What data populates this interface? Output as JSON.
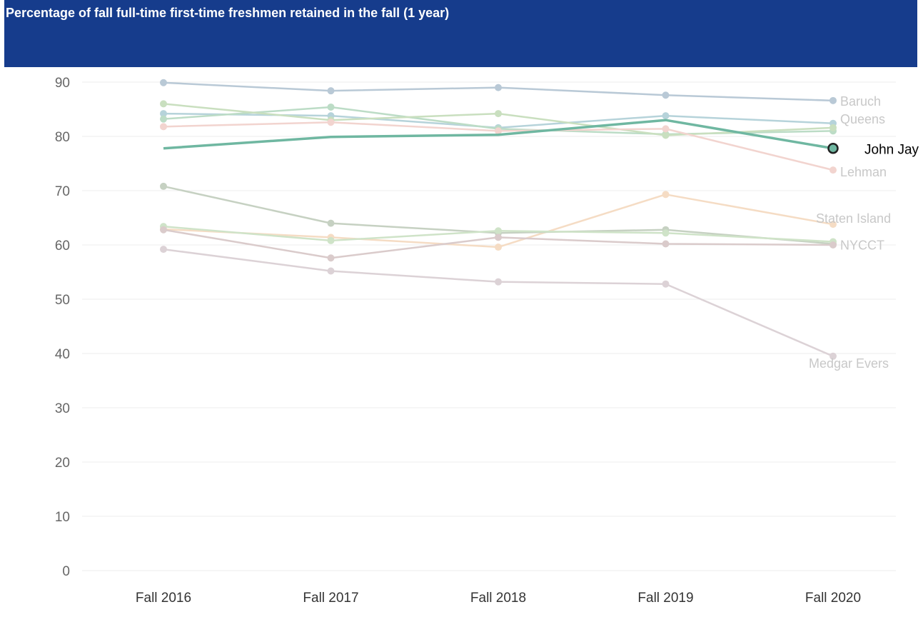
{
  "chart_data": {
    "type": "line",
    "title": "Percentage of fall full-time first-time freshmen retained in the fall (1 year)",
    "xlabel": "",
    "ylabel": "",
    "categories": [
      "Fall 2016",
      "Fall 2017",
      "Fall 2018",
      "Fall 2019",
      "Fall 2020"
    ],
    "ylim": [
      0,
      90
    ],
    "yticks": [
      0,
      10,
      20,
      30,
      40,
      50,
      60,
      70,
      80,
      90
    ],
    "grid": true,
    "highlight": "John Jay",
    "series": [
      {
        "name": "Baruch",
        "label": "Baruch",
        "values": [
          89.9,
          88.4,
          89.0,
          87.6,
          86.6
        ],
        "color": "#b9c9d6"
      },
      {
        "name": "Queens",
        "label": "Queens",
        "values": [
          84.2,
          83.8,
          81.6,
          83.8,
          82.4
        ],
        "color": "#b6d3da"
      },
      {
        "name": "",
        "label": "",
        "values": [
          83.2,
          85.4,
          81.4,
          80.4,
          81.0
        ],
        "color": "#bcdcc6"
      },
      {
        "name": "",
        "label": "",
        "values": [
          86.0,
          83.0,
          84.2,
          80.2,
          81.6
        ],
        "color": "#c9dfbf"
      },
      {
        "name": "Lehman",
        "label": "Lehman",
        "values": [
          81.8,
          82.6,
          81.0,
          81.4,
          73.8
        ],
        "color": "#f2d4cf"
      },
      {
        "name": "John Jay",
        "label": "John Jay",
        "values": [
          77.8,
          79.9,
          80.3,
          83.0,
          77.8
        ],
        "color": "#6fb7a1"
      },
      {
        "name": "Staten Island",
        "label": "Staten Island",
        "values": [
          62.9,
          61.4,
          59.6,
          69.3,
          63.8
        ],
        "color": "#f5dcc4"
      },
      {
        "name": "NYCCT",
        "label": "NYCCT",
        "values": [
          70.8,
          64.0,
          62.2,
          62.8,
          60.2
        ],
        "color": "#c6d1c2"
      },
      {
        "name": "",
        "label": "",
        "values": [
          63.4,
          60.8,
          62.6,
          62.2,
          60.6
        ],
        "color": "#cfe3c8"
      },
      {
        "name": "",
        "label": "",
        "values": [
          62.8,
          57.6,
          61.4,
          60.2,
          60.0
        ],
        "color": "#dacbcb"
      },
      {
        "name": "Medgar Evers",
        "label": "Medgar Evers",
        "values": [
          59.2,
          55.2,
          53.2,
          52.8,
          39.5
        ],
        "color": "#dcd2d6"
      }
    ]
  }
}
